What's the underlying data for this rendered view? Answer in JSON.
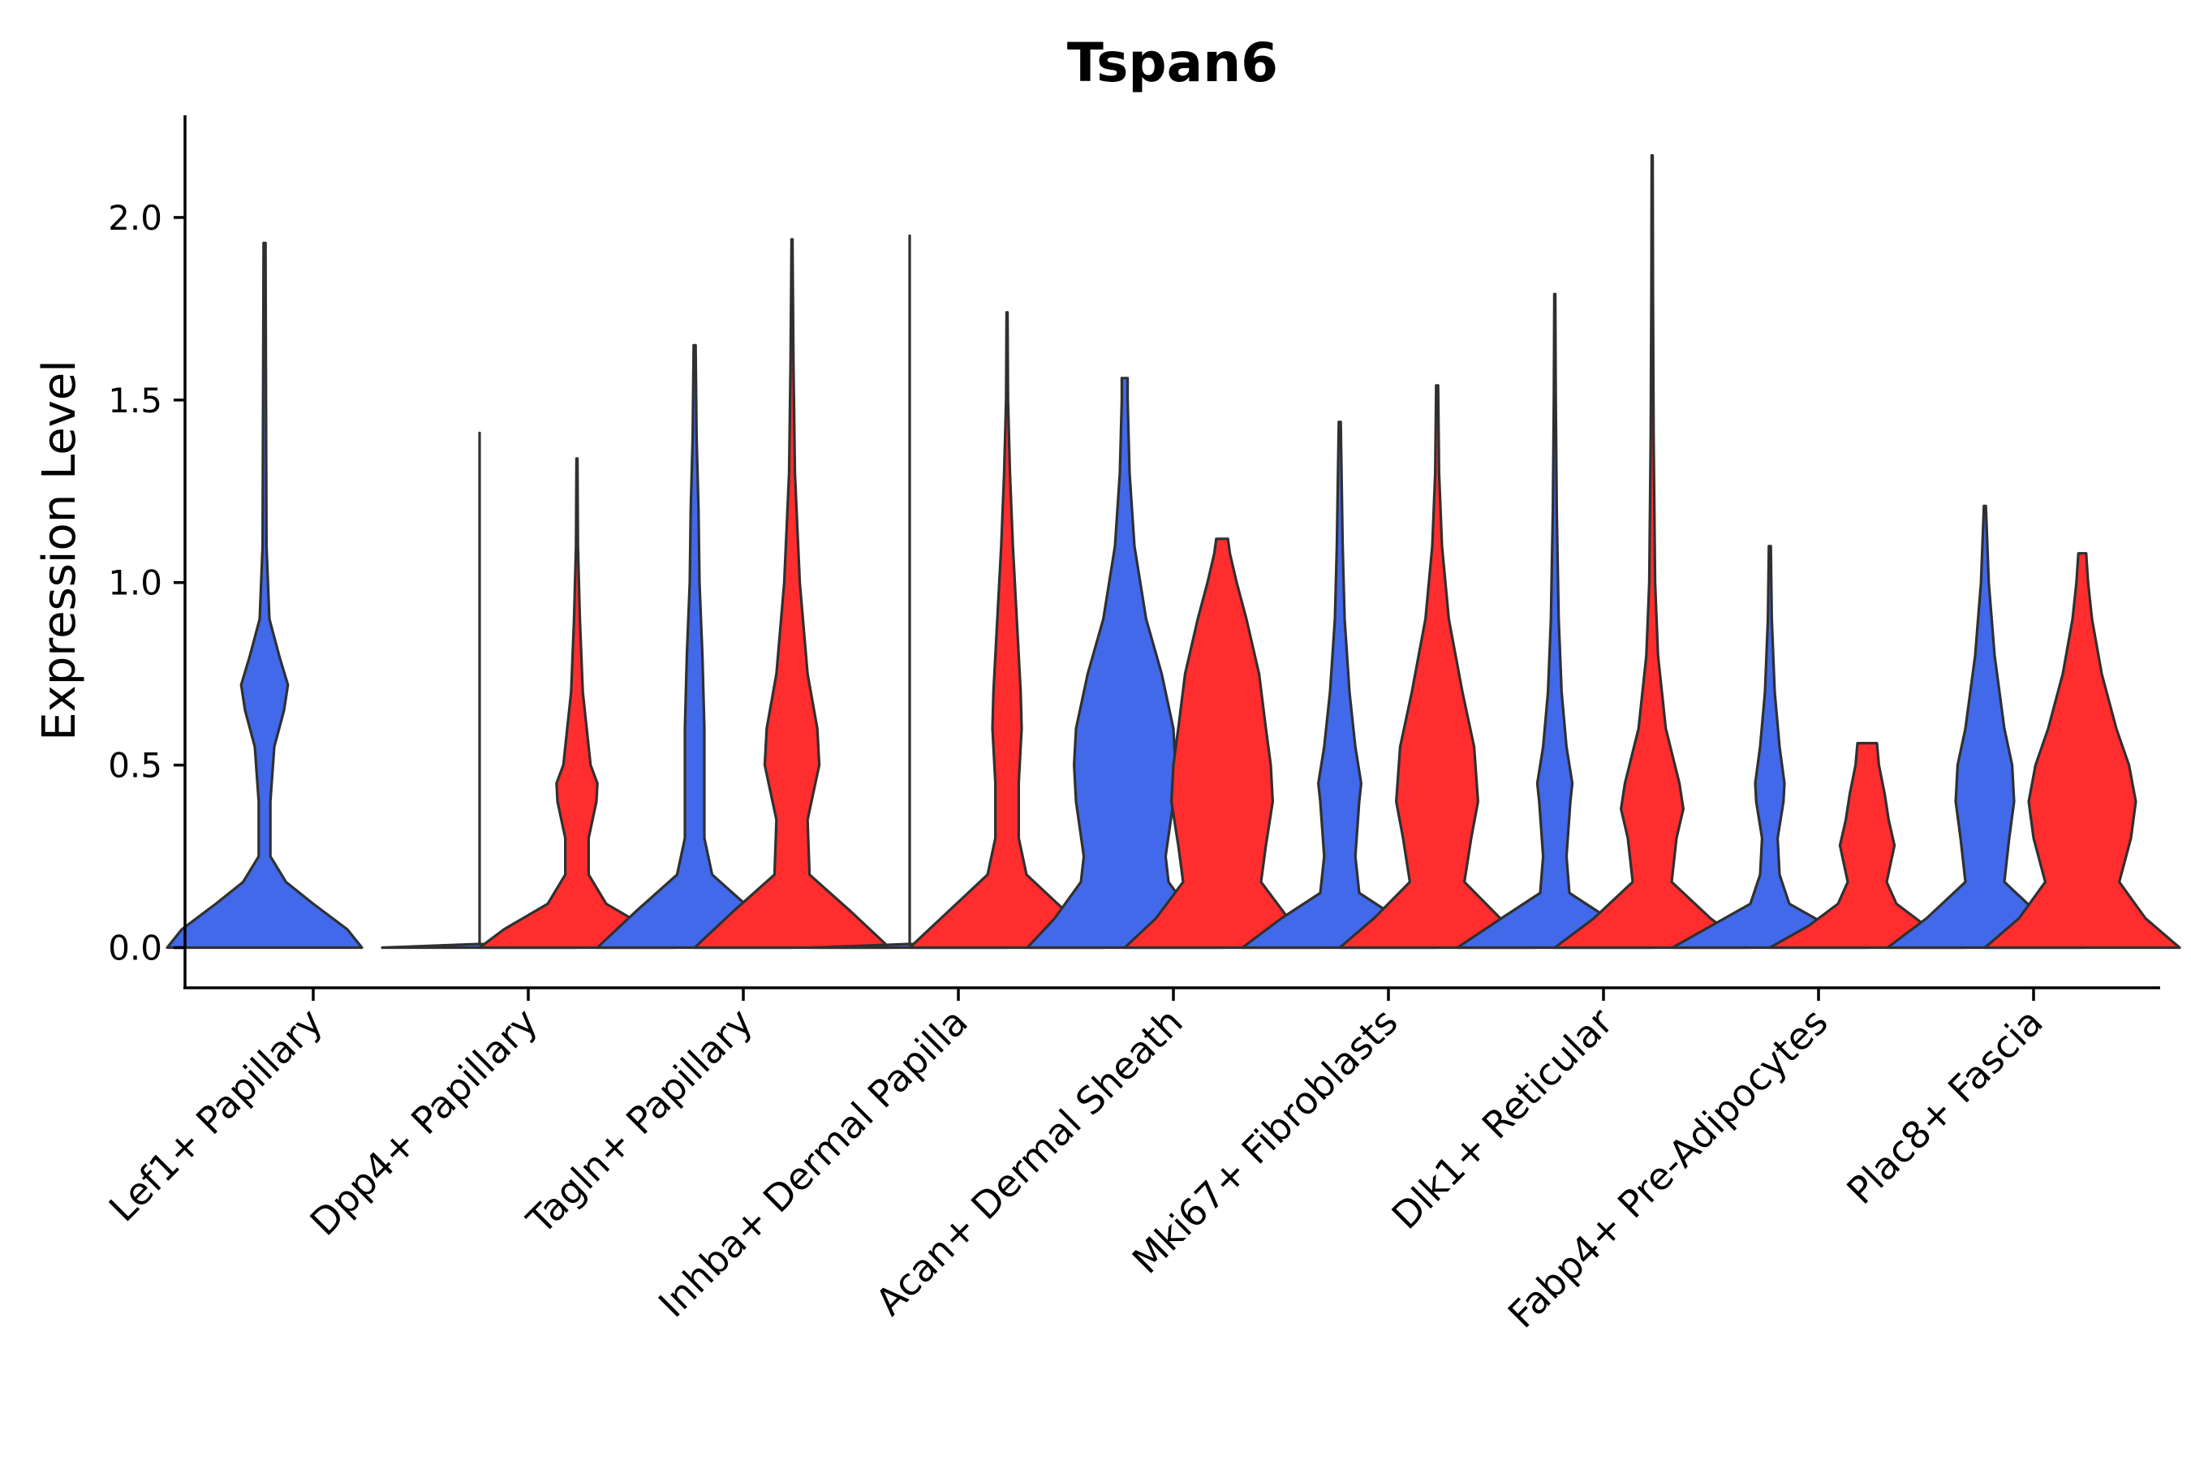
{
  "chart_data": {
    "type": "violin",
    "title": "Tspan6",
    "xlabel": "",
    "ylabel": "Expression Level",
    "ylim": [
      -0.11,
      2.28
    ],
    "yticks": [
      "0.0",
      "0.5",
      "1.0",
      "1.5",
      "2.0"
    ],
    "ytick_values": [
      0,
      0.5,
      1.0,
      1.5,
      2.0
    ],
    "grid": false,
    "legend": "none",
    "series_colors": [
      "#4169E9",
      "#FF2D2D"
    ],
    "categories": [
      "Lef1+ Papillary",
      "Dpp4+ Papillary",
      "Tagln+ Papillary",
      "Inhba+ Dermal Papilla",
      "Acan+ Dermal Sheath",
      "Mki67+ Fibroblasts",
      "Dlk1+ Reticular",
      "Fabp4+ Pre-Adipocytes",
      "Plac8+ Fascia"
    ],
    "violins": [
      {
        "category": "Lef1+ Papillary",
        "series": 0,
        "max": 1.93,
        "profile": [
          [
            0,
            1.0
          ],
          [
            0.05,
            0.85
          ],
          [
            0.12,
            0.5
          ],
          [
            0.18,
            0.22
          ],
          [
            0.25,
            0.06
          ],
          [
            0.4,
            0.06
          ],
          [
            0.55,
            0.1
          ],
          [
            0.65,
            0.2
          ],
          [
            0.72,
            0.24
          ],
          [
            0.8,
            0.15
          ],
          [
            0.9,
            0.05
          ],
          [
            1.1,
            0.02
          ],
          [
            1.5,
            0.015
          ],
          [
            1.93,
            0.01
          ]
        ]
      },
      {
        "category": "Dpp4+ Papillary",
        "series": 0,
        "max": 1.41,
        "profile": [
          [
            0,
            1.0
          ],
          [
            0.01,
            0.0
          ],
          [
            1.41,
            0.0
          ]
        ]
      },
      {
        "category": "Dpp4+ Papillary",
        "series": 1,
        "max": 1.34,
        "profile": [
          [
            0,
            1.0
          ],
          [
            0.05,
            0.75
          ],
          [
            0.12,
            0.3
          ],
          [
            0.2,
            0.12
          ],
          [
            0.3,
            0.12
          ],
          [
            0.4,
            0.2
          ],
          [
            0.45,
            0.21
          ],
          [
            0.5,
            0.14
          ],
          [
            0.6,
            0.1
          ],
          [
            0.7,
            0.06
          ],
          [
            0.9,
            0.03
          ],
          [
            1.1,
            0.01
          ],
          [
            1.34,
            0.005
          ]
        ]
      },
      {
        "category": "Tagln+ Papillary",
        "series": 0,
        "max": 1.65,
        "profile": [
          [
            0,
            1.0
          ],
          [
            0.1,
            0.6
          ],
          [
            0.2,
            0.18
          ],
          [
            0.3,
            0.1
          ],
          [
            0.5,
            0.1
          ],
          [
            0.6,
            0.1
          ],
          [
            0.8,
            0.08
          ],
          [
            1.0,
            0.05
          ],
          [
            1.2,
            0.04
          ],
          [
            1.4,
            0.02
          ],
          [
            1.65,
            0.01
          ]
        ]
      },
      {
        "category": "Tagln+ Papillary",
        "series": 1,
        "max": 1.94,
        "profile": [
          [
            0,
            1.0
          ],
          [
            0.1,
            0.6
          ],
          [
            0.2,
            0.18
          ],
          [
            0.35,
            0.16
          ],
          [
            0.5,
            0.28
          ],
          [
            0.6,
            0.26
          ],
          [
            0.75,
            0.16
          ],
          [
            1.0,
            0.08
          ],
          [
            1.3,
            0.03
          ],
          [
            1.6,
            0.015
          ],
          [
            1.94,
            0.005
          ]
        ]
      },
      {
        "category": "Inhba+ Dermal Papilla",
        "series": 0,
        "max": 1.95,
        "profile": [
          [
            0,
            1.0
          ],
          [
            0.01,
            0.0
          ],
          [
            1.95,
            0.0
          ]
        ]
      },
      {
        "category": "Inhba+ Dermal Papilla",
        "series": 1,
        "max": 1.74,
        "profile": [
          [
            0,
            1.0
          ],
          [
            0.1,
            0.6
          ],
          [
            0.2,
            0.2
          ],
          [
            0.3,
            0.12
          ],
          [
            0.45,
            0.12
          ],
          [
            0.6,
            0.15
          ],
          [
            0.7,
            0.14
          ],
          [
            0.9,
            0.1
          ],
          [
            1.1,
            0.06
          ],
          [
            1.3,
            0.03
          ],
          [
            1.5,
            0.01
          ],
          [
            1.74,
            0.005
          ]
        ]
      },
      {
        "category": "Acan+ Dermal Sheath",
        "series": 0,
        "max": 1.56,
        "profile": [
          [
            0,
            1.0
          ],
          [
            0.08,
            0.72
          ],
          [
            0.18,
            0.45
          ],
          [
            0.25,
            0.42
          ],
          [
            0.4,
            0.5
          ],
          [
            0.5,
            0.52
          ],
          [
            0.6,
            0.5
          ],
          [
            0.75,
            0.38
          ],
          [
            0.9,
            0.22
          ],
          [
            1.1,
            0.1
          ],
          [
            1.3,
            0.05
          ],
          [
            1.5,
            0.03
          ],
          [
            1.56,
            0.03
          ]
        ]
      },
      {
        "category": "Acan+ Dermal Sheath",
        "series": 1,
        "max": 1.12,
        "profile": [
          [
            0,
            1.0
          ],
          [
            0.08,
            0.68
          ],
          [
            0.18,
            0.4
          ],
          [
            0.28,
            0.45
          ],
          [
            0.4,
            0.52
          ],
          [
            0.5,
            0.5
          ],
          [
            0.6,
            0.45
          ],
          [
            0.75,
            0.38
          ],
          [
            0.9,
            0.25
          ],
          [
            1.0,
            0.15
          ],
          [
            1.08,
            0.08
          ],
          [
            1.12,
            0.06
          ]
        ]
      },
      {
        "category": "Mki67+ Fibroblasts",
        "series": 0,
        "max": 1.44,
        "profile": [
          [
            0,
            1.0
          ],
          [
            0.08,
            0.6
          ],
          [
            0.15,
            0.2
          ],
          [
            0.25,
            0.16
          ],
          [
            0.4,
            0.2
          ],
          [
            0.45,
            0.22
          ],
          [
            0.55,
            0.16
          ],
          [
            0.7,
            0.1
          ],
          [
            0.9,
            0.05
          ],
          [
            1.1,
            0.03
          ],
          [
            1.44,
            0.01
          ]
        ]
      },
      {
        "category": "Mki67+ Fibroblasts",
        "series": 1,
        "max": 1.54,
        "profile": [
          [
            0,
            1.0
          ],
          [
            0.08,
            0.65
          ],
          [
            0.18,
            0.28
          ],
          [
            0.3,
            0.35
          ],
          [
            0.4,
            0.42
          ],
          [
            0.55,
            0.38
          ],
          [
            0.7,
            0.26
          ],
          [
            0.9,
            0.12
          ],
          [
            1.1,
            0.05
          ],
          [
            1.3,
            0.02
          ],
          [
            1.54,
            0.01
          ]
        ]
      },
      {
        "category": "Dlk1+ Reticular",
        "series": 0,
        "max": 1.79,
        "profile": [
          [
            0,
            1.0
          ],
          [
            0.08,
            0.55
          ],
          [
            0.15,
            0.15
          ],
          [
            0.25,
            0.12
          ],
          [
            0.4,
            0.16
          ],
          [
            0.45,
            0.18
          ],
          [
            0.55,
            0.12
          ],
          [
            0.7,
            0.07
          ],
          [
            0.9,
            0.04
          ],
          [
            1.2,
            0.02
          ],
          [
            1.5,
            0.01
          ],
          [
            1.79,
            0.005
          ]
        ]
      },
      {
        "category": "Dlk1+ Reticular",
        "series": 1,
        "max": 2.17,
        "profile": [
          [
            0,
            1.0
          ],
          [
            0.08,
            0.6
          ],
          [
            0.18,
            0.2
          ],
          [
            0.3,
            0.25
          ],
          [
            0.38,
            0.32
          ],
          [
            0.45,
            0.28
          ],
          [
            0.6,
            0.14
          ],
          [
            0.8,
            0.06
          ],
          [
            1.0,
            0.03
          ],
          [
            1.4,
            0.015
          ],
          [
            1.8,
            0.008
          ],
          [
            2.17,
            0.005
          ]
        ]
      },
      {
        "category": "Fabp4+ Pre-Adipocytes",
        "series": 0,
        "max": 1.1,
        "profile": [
          [
            0,
            1.0
          ],
          [
            0.06,
            0.6
          ],
          [
            0.12,
            0.2
          ],
          [
            0.2,
            0.1
          ],
          [
            0.3,
            0.08
          ],
          [
            0.4,
            0.14
          ],
          [
            0.45,
            0.15
          ],
          [
            0.55,
            0.1
          ],
          [
            0.7,
            0.05
          ],
          [
            0.9,
            0.02
          ],
          [
            1.1,
            0.01
          ]
        ]
      },
      {
        "category": "Fabp4+ Pre-Adipocytes",
        "series": 1,
        "max": 0.56,
        "profile": [
          [
            0,
            1.0
          ],
          [
            0.06,
            0.6
          ],
          [
            0.12,
            0.3
          ],
          [
            0.18,
            0.2
          ],
          [
            0.28,
            0.28
          ],
          [
            0.35,
            0.22
          ],
          [
            0.42,
            0.18
          ],
          [
            0.5,
            0.12
          ],
          [
            0.56,
            0.1
          ]
        ]
      },
      {
        "category": "Plac8+ Fascia",
        "series": 0,
        "max": 1.21,
        "profile": [
          [
            0,
            1.0
          ],
          [
            0.08,
            0.6
          ],
          [
            0.18,
            0.2
          ],
          [
            0.3,
            0.25
          ],
          [
            0.4,
            0.3
          ],
          [
            0.5,
            0.28
          ],
          [
            0.6,
            0.2
          ],
          [
            0.8,
            0.1
          ],
          [
            1.0,
            0.04
          ],
          [
            1.21,
            0.01
          ]
        ]
      },
      {
        "category": "Plac8+ Fascia",
        "series": 1,
        "max": 1.08,
        "profile": [
          [
            0,
            1.0
          ],
          [
            0.08,
            0.65
          ],
          [
            0.18,
            0.38
          ],
          [
            0.3,
            0.5
          ],
          [
            0.4,
            0.55
          ],
          [
            0.5,
            0.48
          ],
          [
            0.6,
            0.35
          ],
          [
            0.75,
            0.2
          ],
          [
            0.9,
            0.1
          ],
          [
            1.0,
            0.06
          ],
          [
            1.08,
            0.04
          ]
        ]
      }
    ]
  }
}
